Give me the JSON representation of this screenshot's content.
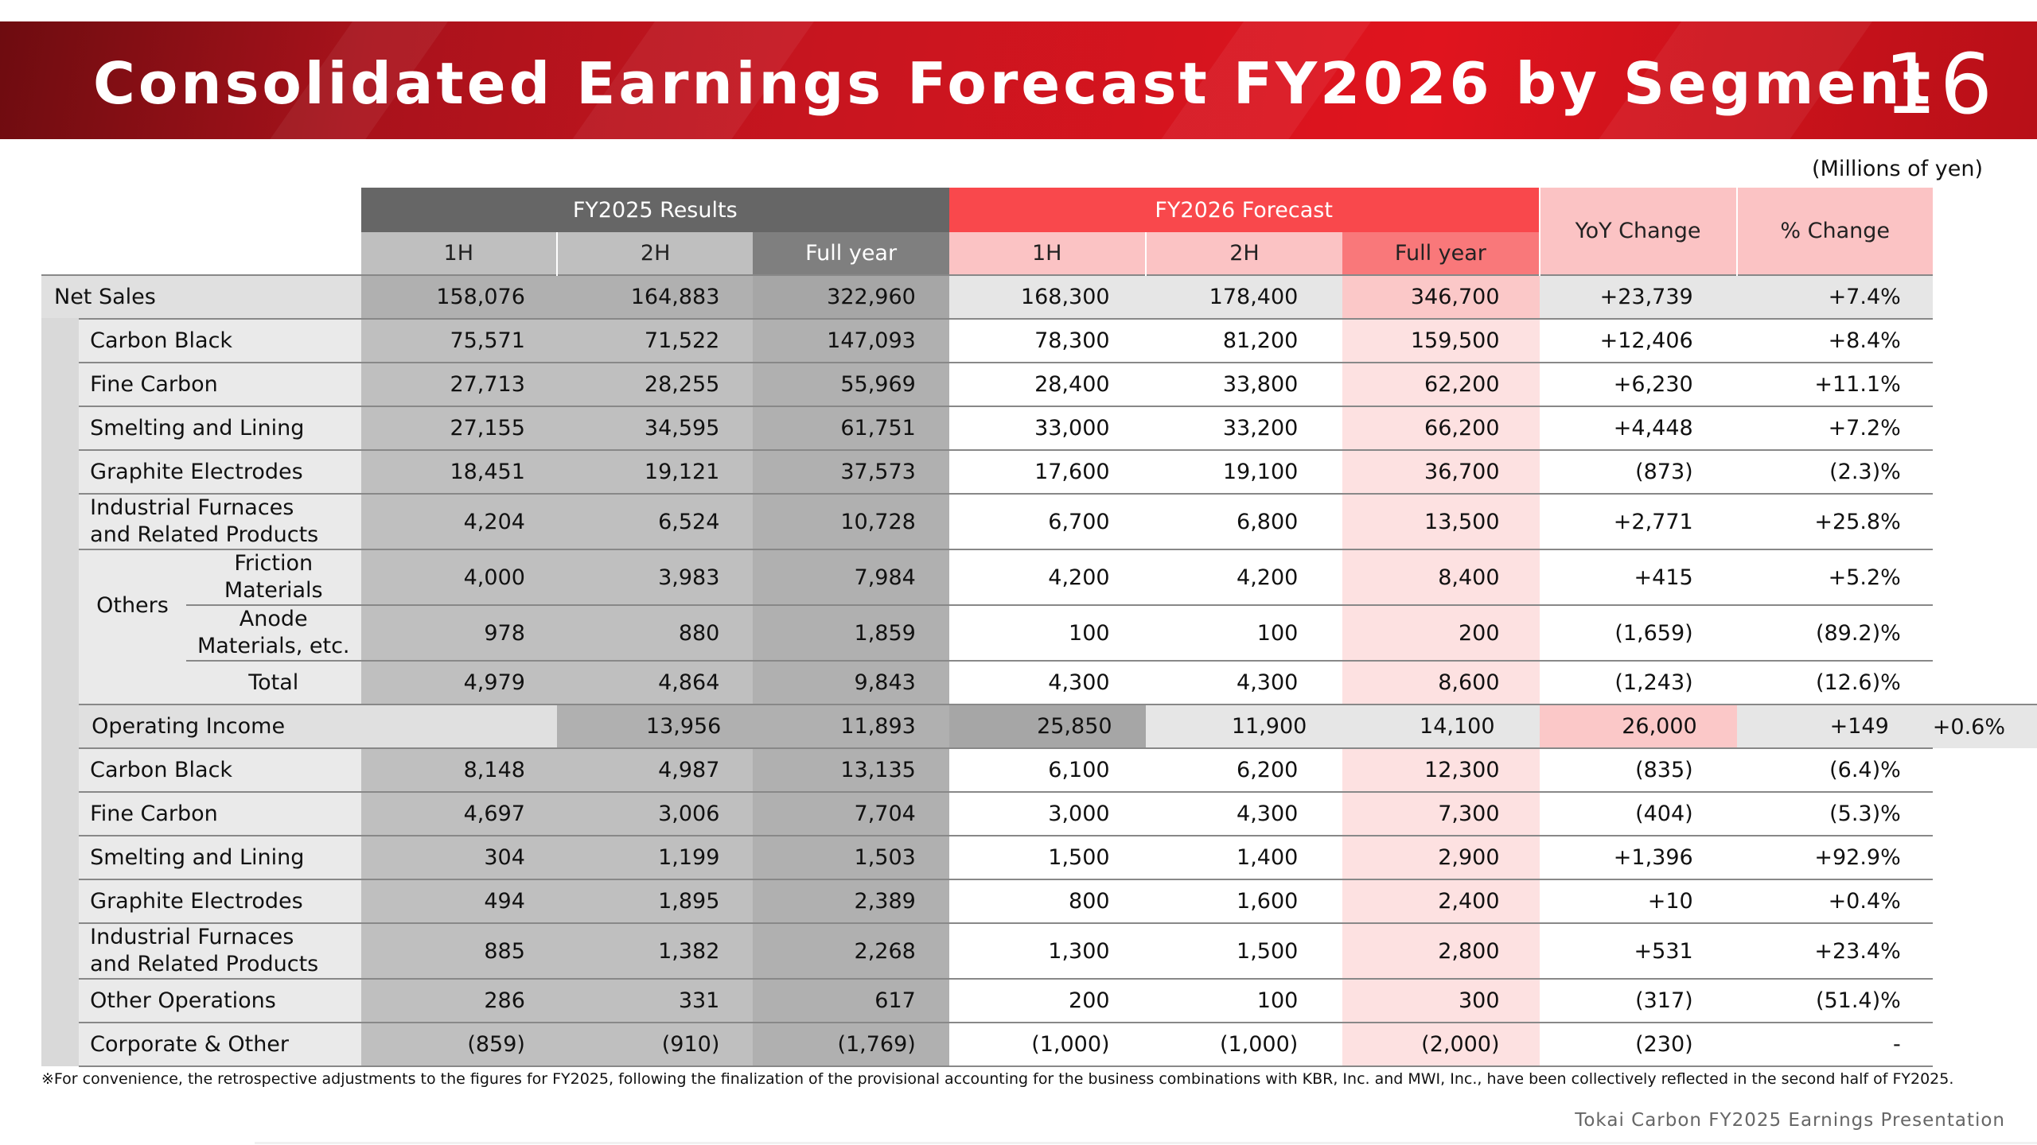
{
  "slide": {
    "title": "Consolidated Earnings Forecast FY2026 by Segment",
    "page_number": "16",
    "unit": "(Millions of yen)",
    "footnote": "※For convenience, the retrospective adjustments to the figures for FY2025, following the finalization of the provisional accounting for the business combinations with KBR, Inc. and MWI, Inc., have been collectively reflected in the second half of FY2025.",
    "footer": "Tokai Carbon FY2025 Earnings Presentation"
  },
  "header": {
    "fy2025": "FY2025 Results",
    "fy2026": "FY2026 Forecast",
    "yoy": "YoY Change",
    "pct": "% Change",
    "h1": "1H",
    "h2": "2H",
    "full": "Full year"
  },
  "rows": {
    "net_sales": {
      "label": "Net Sales",
      "v": [
        "158,076",
        "164,883",
        "322,960",
        "168,300",
        "178,400",
        "346,700",
        "+23,739",
        "+7.4%"
      ]
    },
    "ns_carbon_black": {
      "label": "Carbon Black",
      "v": [
        "75,571",
        "71,522",
        "147,093",
        "78,300",
        "81,200",
        "159,500",
        "+12,406",
        "+8.4%"
      ]
    },
    "ns_fine_carbon": {
      "label": "Fine Carbon",
      "v": [
        "27,713",
        "28,255",
        "55,969",
        "28,400",
        "33,800",
        "62,200",
        "+6,230",
        "+11.1%"
      ]
    },
    "ns_smelting": {
      "label": "Smelting and Lining",
      "v": [
        "27,155",
        "34,595",
        "61,751",
        "33,000",
        "33,200",
        "66,200",
        "+4,448",
        "+7.2%"
      ]
    },
    "ns_graphite": {
      "label": "Graphite Electrodes",
      "v": [
        "18,451",
        "19,121",
        "37,573",
        "17,600",
        "19,100",
        "36,700",
        "(873)",
        "(2.3)%"
      ]
    },
    "ns_furnaces": {
      "label1": "Industrial Furnaces",
      "label2": "and Related Products",
      "v": [
        "4,204",
        "6,524",
        "10,728",
        "6,700",
        "6,800",
        "13,500",
        "+2,771",
        "+25.8%"
      ]
    },
    "ns_others_label": "Others",
    "ns_friction": {
      "label1": "Friction",
      "label2": "Materials",
      "v": [
        "4,000",
        "3,983",
        "7,984",
        "4,200",
        "4,200",
        "8,400",
        "+415",
        "+5.2%"
      ]
    },
    "ns_anode": {
      "label1": "Anode",
      "label2": "Materials, etc.",
      "v": [
        "978",
        "880",
        "1,859",
        "100",
        "100",
        "200",
        "(1,659)",
        "(89.2)%"
      ]
    },
    "ns_total": {
      "label": "Total",
      "v": [
        "4,979",
        "4,864",
        "9,843",
        "4,300",
        "4,300",
        "8,600",
        "(1,243)",
        "(12.6)%"
      ]
    },
    "op_income": {
      "label": "Operating Income",
      "v": [
        "13,956",
        "11,893",
        "25,850",
        "11,900",
        "14,100",
        "26,000",
        "+149",
        "+0.6%"
      ]
    },
    "oi_carbon_black": {
      "label": "Carbon Black",
      "v": [
        "8,148",
        "4,987",
        "13,135",
        "6,100",
        "6,200",
        "12,300",
        "(835)",
        "(6.4)%"
      ]
    },
    "oi_fine_carbon": {
      "label": "Fine Carbon",
      "v": [
        "4,697",
        "3,006",
        "7,704",
        "3,000",
        "4,300",
        "7,300",
        "(404)",
        "(5.3)%"
      ]
    },
    "oi_smelting": {
      "label": "Smelting and Lining",
      "v": [
        "304",
        "1,199",
        "1,503",
        "1,500",
        "1,400",
        "2,900",
        "+1,396",
        "+92.9%"
      ]
    },
    "oi_graphite": {
      "label": "Graphite Electrodes",
      "v": [
        "494",
        "1,895",
        "2,389",
        "800",
        "1,600",
        "2,400",
        "+10",
        "+0.4%"
      ]
    },
    "oi_furnaces": {
      "label1": "Industrial Furnaces",
      "label2": "and Related Products",
      "v": [
        "885",
        "1,382",
        "2,268",
        "1,300",
        "1,500",
        "2,800",
        "+531",
        "+23.4%"
      ]
    },
    "oi_other_ops": {
      "label": "Other Operations",
      "v": [
        "286",
        "331",
        "617",
        "200",
        "100",
        "300",
        "(317)",
        "(51.4)%"
      ]
    },
    "oi_corporate": {
      "label": "Corporate & Other",
      "v": [
        "(859)",
        "(910)",
        "(1,769)",
        "(1,000)",
        "(1,000)",
        "(2,000)",
        "(230)",
        "-"
      ]
    }
  }
}
